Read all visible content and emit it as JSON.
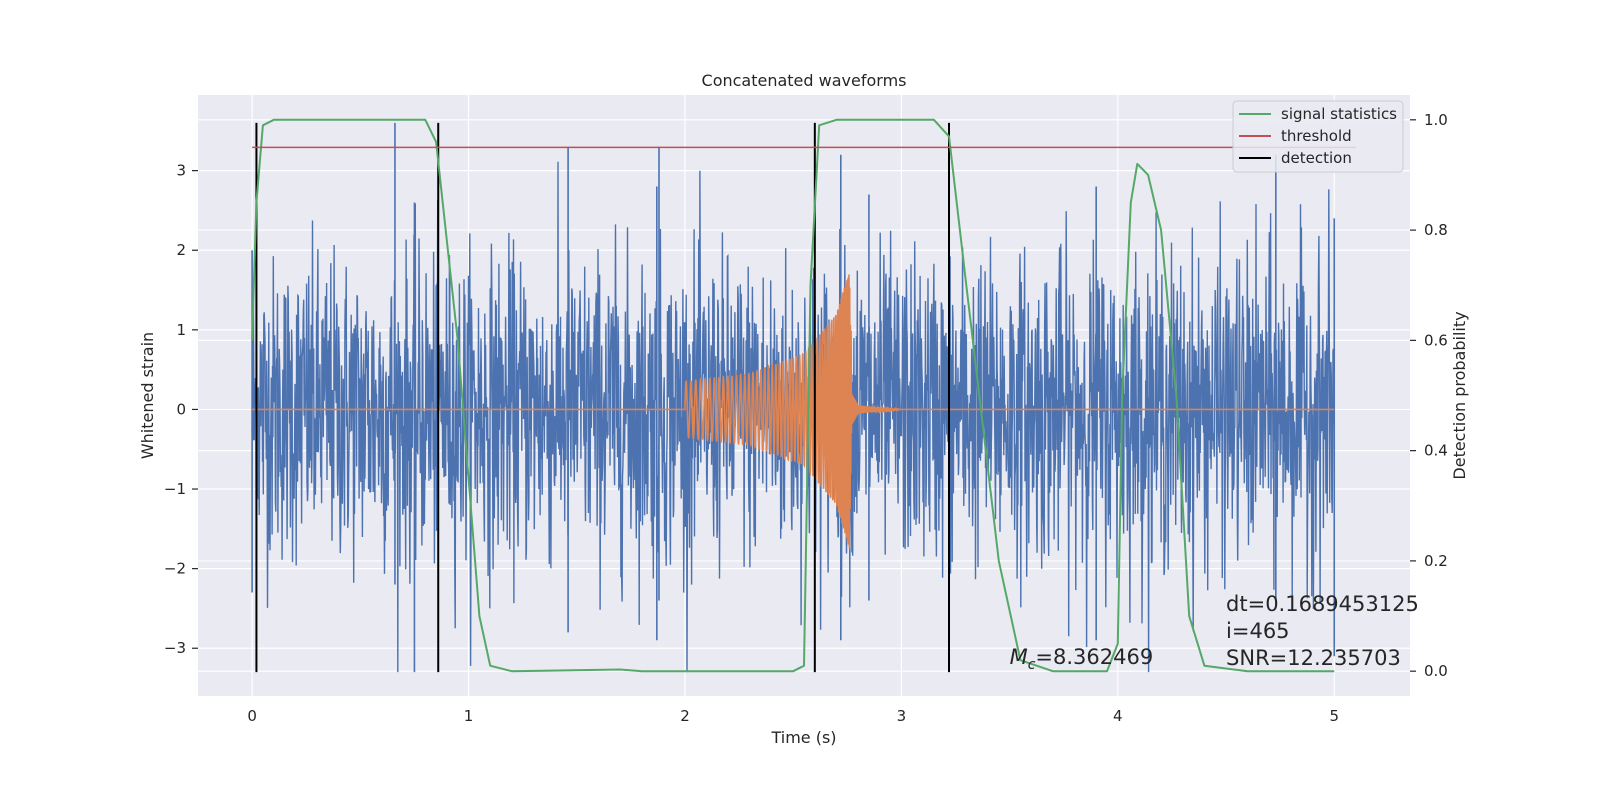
{
  "chart_data": {
    "type": "line",
    "title": "Concatenated waveforms",
    "xlabel": "Time (s)",
    "ylabel": "Whitened strain",
    "y2label": "Detection probability",
    "xlim": [
      -0.25,
      5.35
    ],
    "ylim": [
      -3.6,
      3.95
    ],
    "y2lim": [
      -0.045,
      1.045
    ],
    "xticks": [
      0,
      1,
      2,
      3,
      4,
      5
    ],
    "xtick_labels": [
      "0",
      "1",
      "2",
      "3",
      "4",
      "5"
    ],
    "yticks": [
      -3,
      -2,
      -1,
      0,
      1,
      2,
      3
    ],
    "ytick_labels": [
      "−3",
      "−2",
      "−1",
      "0",
      "1",
      "2",
      "3"
    ],
    "y2ticks": [
      0.0,
      0.2,
      0.4,
      0.6,
      0.8,
      1.0
    ],
    "y2tick_labels": [
      "0.0",
      "0.2",
      "0.4",
      "0.6",
      "0.8",
      "1.0"
    ],
    "grid": true,
    "legend_position": "top-right",
    "colors": {
      "strain": "#4c72b0",
      "injected": "#dd8452",
      "statistics": "#55a868",
      "threshold": "#c44e52",
      "detection": "#000000",
      "axes_bg": "#eaeaf2",
      "grid": "#ffffff"
    },
    "series": [
      {
        "name": "",
        "axis": "left",
        "description_points": "whitened noise, envelope",
        "x_range": [
          0,
          5
        ],
        "envelope": [
          {
            "x": 0.0,
            "upper": 2.0,
            "lower": -2.3
          },
          {
            "x": 0.66,
            "upper": 3.6,
            "lower": -2.2
          },
          {
            "x": 0.75,
            "upper": 2.6,
            "lower": -3.3
          },
          {
            "x": 1.46,
            "upper": 3.3,
            "lower": -2.8
          },
          {
            "x": 1.88,
            "upper": 3.3,
            "lower": -2.4
          },
          {
            "x": 1.87,
            "upper": 2.8,
            "lower": -2.9
          },
          {
            "x": 2.72,
            "upper": 3.2,
            "lower": -2.9
          },
          {
            "x": 2.85,
            "upper": 2.7,
            "lower": -2.4
          },
          {
            "x": 3.9,
            "upper": 2.8,
            "lower": -2.9
          },
          {
            "x": 4.73,
            "upper": 3.2,
            "lower": -2.5
          },
          {
            "x": 5.0,
            "upper": 2.4,
            "lower": -3.1
          }
        ]
      },
      {
        "name": "",
        "axis": "left",
        "description_points": "injected chirp envelope",
        "points": [
          {
            "x": 1.995,
            "amp": 0.0
          },
          {
            "x": 2.0,
            "amp": 0.35
          },
          {
            "x": 2.3,
            "amp": 0.45
          },
          {
            "x": 2.55,
            "amp": 0.7
          },
          {
            "x": 2.7,
            "amp": 1.2
          },
          {
            "x": 2.76,
            "amp": 1.75
          },
          {
            "x": 2.77,
            "amp": 0.2
          },
          {
            "x": 2.8,
            "amp": 0.05
          },
          {
            "x": 3.0,
            "amp": 0.0
          }
        ]
      },
      {
        "name": "signal statistics",
        "axis": "right",
        "x": [
          0.0,
          0.02,
          0.05,
          0.1,
          0.8,
          0.85,
          0.95,
          1.05,
          1.1,
          1.2,
          1.7,
          1.8,
          2.5,
          2.55,
          2.58,
          2.62,
          2.7,
          3.15,
          3.22,
          3.3,
          3.45,
          3.55,
          3.7,
          3.95,
          4.0,
          4.02,
          4.06,
          4.09,
          4.14,
          4.2,
          4.27,
          4.33,
          4.4,
          4.6,
          5.0
        ],
        "y": [
          0.6,
          0.85,
          0.99,
          1.0,
          1.0,
          0.96,
          0.6,
          0.1,
          0.01,
          0.0,
          0.003,
          0.0,
          0.0,
          0.01,
          0.7,
          0.99,
          1.0,
          1.0,
          0.97,
          0.7,
          0.2,
          0.02,
          0.0,
          0.0,
          0.05,
          0.5,
          0.85,
          0.92,
          0.9,
          0.8,
          0.5,
          0.1,
          0.01,
          0.0,
          0.0
        ]
      },
      {
        "name": "threshold",
        "axis": "right",
        "x": [
          0.0,
          5.1
        ],
        "y": [
          0.95,
          0.95
        ]
      },
      {
        "name": "detection",
        "axis": "left",
        "vlines": [
          0.02,
          0.86,
          2.6,
          3.22
        ],
        "ymin": -3.3,
        "ymax": 3.6
      }
    ],
    "annotations": [
      {
        "text": "M",
        "sub": "c",
        "rest": "=8.362469",
        "x": 3.5,
        "y": -3.2
      },
      {
        "text": "dt=0.1689453125",
        "x": 4.5,
        "y": -2.53
      },
      {
        "text": " i=465",
        "x": 4.5,
        "y": -2.87
      },
      {
        "text": "SNR=12.235703",
        "x": 4.5,
        "y": -3.21
      }
    ]
  }
}
